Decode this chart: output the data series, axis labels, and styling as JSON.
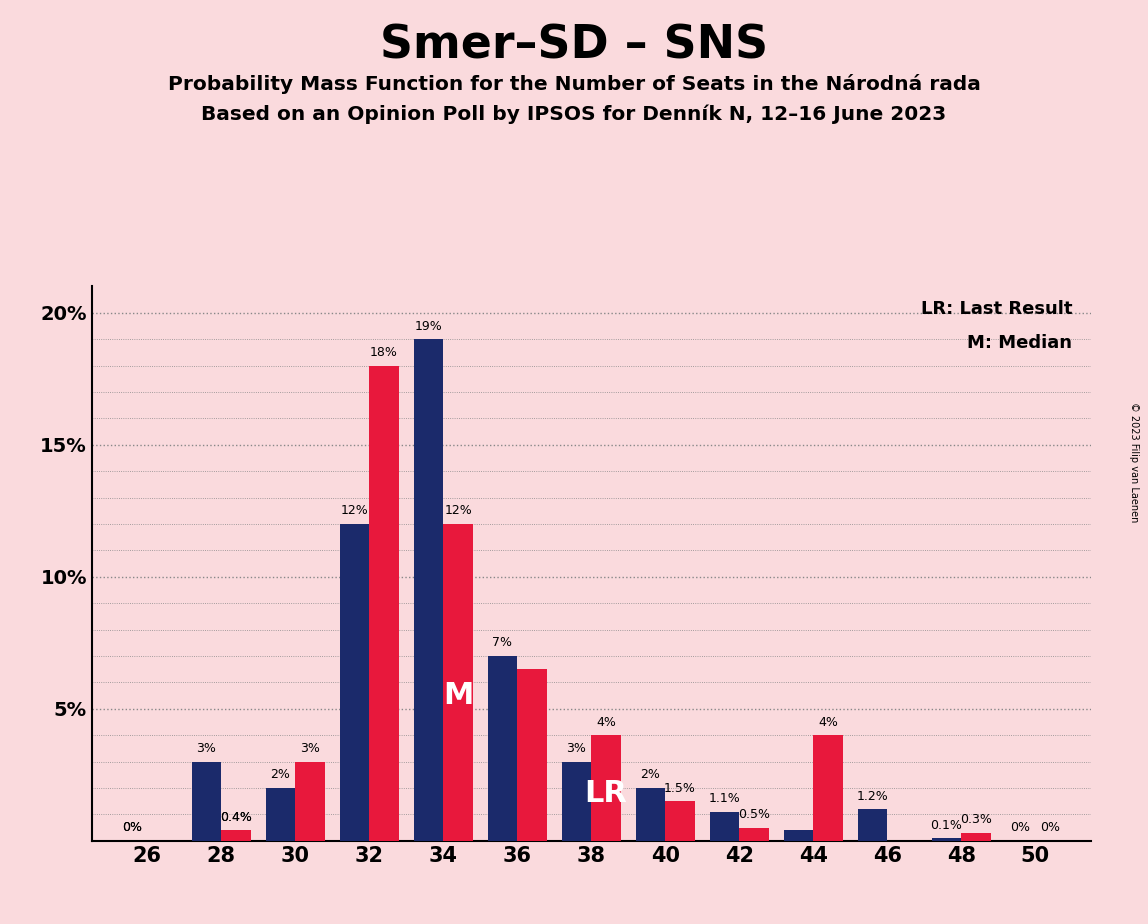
{
  "title": "Smer–SD – SNS",
  "subtitle1": "Probability Mass Function for the Number of Seats in the Národná rada",
  "subtitle2": "Based on an Opinion Poll by IPSOS for Denník N, 12–16 June 2023",
  "copyright": "© 2023 Filip van Laenen",
  "background_color": "#fadadd",
  "bar_color_blue": "#1b2a6b",
  "bar_color_red": "#e8183c",
  "seats": [
    26,
    28,
    30,
    32,
    34,
    36,
    38,
    40,
    42,
    44,
    46,
    48,
    50
  ],
  "blue_values": [
    0.0,
    3.0,
    2.0,
    12.0,
    19.0,
    7.0,
    3.0,
    2.0,
    1.1,
    0.4,
    1.2,
    0.1,
    0.0
  ],
  "red_values": [
    0.0,
    0.4,
    3.0,
    18.0,
    12.0,
    6.5,
    4.0,
    1.5,
    0.5,
    4.0,
    0.0,
    0.3,
    0.0
  ],
  "blue_labels": [
    "0%",
    "3%",
    "2%",
    "12%",
    "19%",
    "7%",
    "3%",
    "2%",
    "1.1%",
    "",
    "1.2%",
    "0.1%",
    "0%"
  ],
  "red_labels": [
    "",
    "0.4%",
    "3%",
    "18%",
    "12%",
    "",
    "4%",
    "1.5%",
    "0.5%",
    "4%",
    "",
    "0.3%",
    "0%"
  ],
  "blue_label_show": [
    true,
    true,
    true,
    true,
    true,
    true,
    true,
    true,
    true,
    false,
    true,
    true,
    true
  ],
  "red_label_show": [
    false,
    true,
    true,
    true,
    true,
    false,
    true,
    true,
    true,
    true,
    false,
    true,
    true
  ],
  "median_x": 34,
  "lr_x": 38,
  "ylim": [
    0,
    21
  ],
  "ytick_vals": [
    0,
    5,
    10,
    15,
    20
  ],
  "ytick_labels": [
    "",
    "5%",
    "10%",
    "15%",
    "20%"
  ],
  "xtick_seats": [
    26,
    28,
    30,
    32,
    34,
    36,
    38,
    40,
    42,
    44,
    46,
    48,
    50
  ],
  "legend_lr": "LR: Last Result",
  "legend_m": "M: Median",
  "bar_width": 0.8,
  "xlim": [
    24.5,
    51.5
  ],
  "also_show_0_blue": [
    0,
    12
  ],
  "also_show_0_red": [
    0,
    10,
    12
  ]
}
